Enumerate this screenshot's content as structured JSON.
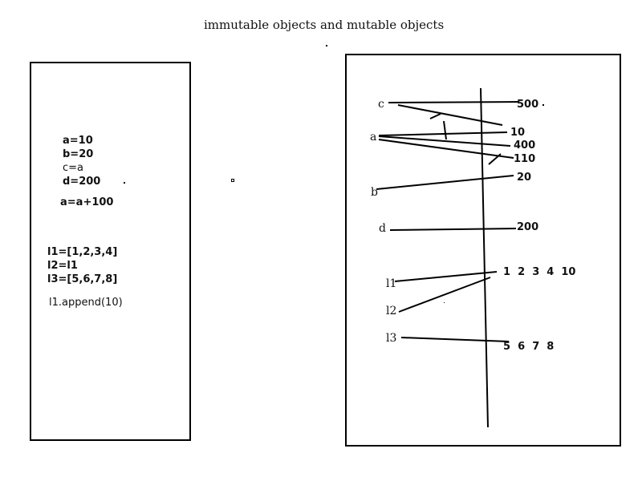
{
  "title": "immutable objects and mutable objects",
  "code": {
    "lines": [
      "a=10",
      "b=20",
      "c=a",
      "d=200",
      "a=a+100",
      "l1=[1,2,3,4]",
      "l2=l1",
      "l3=[5,6,7,8]",
      "l1.append(10)"
    ]
  },
  "diagram": {
    "variables": [
      "c",
      "a",
      "b",
      "d",
      "l1",
      "l2",
      "l3"
    ],
    "values": [
      "500",
      "10",
      "400",
      "110",
      "20",
      "200",
      "1  2  3  4  10",
      "5  6  7  8"
    ]
  }
}
